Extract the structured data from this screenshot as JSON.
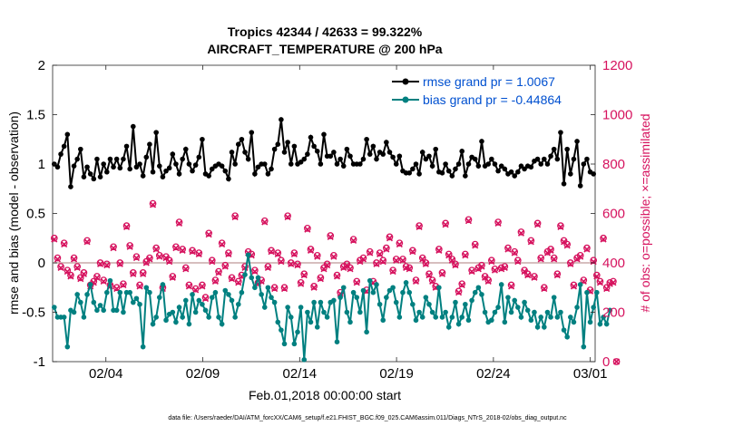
{
  "chart_data": {
    "type": "line",
    "title": "Tropics 42344 / 42633 = 99.322%",
    "subtitle": "AIRCRAFT_TEMPERATURE @ 200 hPa",
    "xlabel": "Feb.01,2018 00:00:00 start",
    "ylabel_left": "rmse and bias (model - observation)",
    "ylabel_right": "# of obs: o=possible; ×=assimilated",
    "footer": "data file: /Users/raeder/DAI/ATM_forcXX/CAM6_setup/f.e21.FHIST_BGC.f09_025.CAM6assim.011/Diags_NTrS_2018-02/obs_diag_output.nc",
    "xlim": [
      1,
      29
    ],
    "ylim_left": [
      -1,
      2
    ],
    "ylim_right": [
      0,
      1200
    ],
    "x_ticks": [
      {
        "value": 3.75,
        "label": "02/04"
      },
      {
        "value": 8.75,
        "label": "02/09"
      },
      {
        "value": 13.75,
        "label": "02/14"
      },
      {
        "value": 18.75,
        "label": "02/19"
      },
      {
        "value": 23.75,
        "label": "02/24"
      },
      {
        "value": 28.75,
        "label": "03/01"
      }
    ],
    "y_ticks_left": [
      -1,
      -0.5,
      0,
      0.5,
      1,
      1.5,
      2
    ],
    "y_ticks_right": [
      0,
      200,
      400,
      600,
      800,
      1000,
      1200
    ],
    "legend": [
      {
        "label": "rmse grand pr = 1.0067",
        "color": "#000000"
      },
      {
        "label": "bias grand pr = -0.44864",
        "color": "#008080"
      }
    ],
    "zero_line": 0,
    "colors": {
      "rmse": "#000000",
      "bias": "#008080",
      "obs": "#d6125e",
      "zero": "#c0a0a0",
      "legend_text": "#0050d0"
    },
    "series": [
      {
        "name": "rmse",
        "axis": "left",
        "values": [
          1.0,
          0.97,
          1.1,
          1.18,
          1.3,
          0.77,
          0.98,
          1.05,
          1.15,
          0.87,
          0.97,
          0.9,
          0.85,
          1.05,
          0.87,
          1.0,
          0.92,
          1.05,
          0.97,
          1.05,
          0.96,
          1.05,
          1.18,
          0.95,
          1.38,
          0.97,
          1.0,
          0.88,
          1.07,
          1.2,
          0.92,
          1.32,
          0.98,
          0.87,
          0.93,
          0.96,
          1.1,
          1.0,
          0.9,
          1.05,
          1.15,
          1.0,
          0.93,
          0.99,
          1.07,
          1.25,
          0.9,
          0.88,
          0.95,
          0.98,
          1.0,
          0.98,
          0.93,
          0.85,
          1.12,
          1.0,
          1.2,
          1.25,
          1.12,
          1.05,
          1.32,
          0.9,
          0.97,
          1.0,
          1.0,
          0.9,
          0.95,
          1.15,
          1.2,
          1.45,
          1.12,
          1.22,
          1.0,
          1.18,
          1.0,
          1.02,
          1.05,
          1.1,
          1.27,
          1.18,
          1.13,
          1.0,
          1.3,
          1.08,
          1.08,
          1.12,
          1.0,
          1.05,
          0.98,
          1.15,
          1.08,
          1.0,
          1.0,
          1.0,
          1.05,
          1.25,
          1.1,
          1.18,
          1.05,
          1.12,
          1.1,
          1.22,
          1.12,
          1.07,
          1.0,
          1.08,
          0.93,
          0.91,
          0.91,
          0.95,
          1.0,
          0.9,
          1.12,
          1.05,
          1.08,
          0.98,
          1.15,
          0.92,
          0.91,
          1.0,
          0.93,
          0.88,
          0.95,
          1.0,
          1.13,
          0.88,
          1.0,
          1.07,
          1.05,
          0.98,
          1.23,
          0.98,
          1.0,
          1.05,
          1.0,
          0.93,
          0.98,
          0.95,
          0.9,
          0.92,
          0.88,
          0.92,
          0.98,
          0.95,
          0.98,
          0.97,
          1.03,
          1.05,
          1.0,
          1.05,
          1.0,
          1.08,
          1.15,
          1.05,
          1.32,
          0.8,
          1.15,
          0.9,
          1.05,
          1.23,
          0.78,
          1.0,
          1.05,
          0.92,
          0.9
        ]
      },
      {
        "name": "bias",
        "axis": "left",
        "values": [
          -0.45,
          -0.55,
          -0.55,
          -0.55,
          -0.85,
          -0.48,
          -0.5,
          -0.32,
          -0.4,
          -0.55,
          -0.32,
          -0.22,
          -0.4,
          -0.48,
          -0.43,
          -0.48,
          -0.3,
          -0.18,
          -0.48,
          -0.48,
          -0.3,
          -0.5,
          -0.3,
          -0.3,
          -0.4,
          -0.36,
          -0.42,
          -0.85,
          -0.25,
          -0.3,
          -0.62,
          -0.55,
          -0.35,
          -0.22,
          -0.58,
          -0.52,
          -0.5,
          -0.6,
          -0.45,
          -0.55,
          -0.38,
          -0.62,
          -0.32,
          -0.5,
          -0.38,
          -0.42,
          -0.48,
          -0.55,
          -0.35,
          -0.3,
          -0.55,
          -0.62,
          -0.28,
          -0.32,
          -0.38,
          -0.55,
          -0.42,
          -0.3,
          -0.12,
          0.08,
          -0.15,
          -0.25,
          -0.15,
          -0.32,
          -0.45,
          -0.25,
          -0.35,
          -0.4,
          -0.6,
          -0.68,
          -0.82,
          -0.45,
          -0.55,
          -0.82,
          -0.7,
          -0.45,
          -0.98,
          -0.5,
          -0.6,
          -0.4,
          -0.65,
          -0.4,
          -0.5,
          -0.55,
          -0.4,
          -0.38,
          -0.8,
          -0.35,
          -0.25,
          -0.5,
          -0.6,
          -0.3,
          -0.35,
          -0.5,
          -0.28,
          -0.7,
          -0.18,
          -0.3,
          -0.22,
          -0.42,
          -0.58,
          -0.35,
          -0.28,
          -0.25,
          -0.4,
          -0.55,
          -0.3,
          -0.2,
          -0.3,
          -0.42,
          -0.58,
          -0.5,
          -0.55,
          -0.35,
          -0.42,
          -0.5,
          -0.55,
          -0.25,
          -0.55,
          -0.5,
          -0.65,
          -0.55,
          -0.4,
          -0.62,
          -0.55,
          -0.42,
          -0.58,
          -0.38,
          -0.3,
          -0.25,
          -0.32,
          -0.5,
          -0.6,
          -0.58,
          -0.5,
          -0.45,
          -0.22,
          -0.6,
          -0.35,
          -0.5,
          -0.38,
          -0.45,
          -0.55,
          -0.4,
          -0.48,
          -0.58,
          -0.5,
          -0.65,
          -0.55,
          -0.65,
          -0.5,
          -0.55,
          -0.35,
          -0.55,
          -0.5,
          -0.68,
          -0.75,
          -0.55,
          -0.6,
          -0.45,
          -0.22,
          -0.85,
          -0.3,
          -0.6,
          -0.45,
          -0.3,
          -0.62,
          -0.55,
          -0.62,
          -0.48
        ]
      },
      {
        "name": "obs_possible",
        "axis": "right",
        "values": [
          500,
          420,
          385,
          480,
          370,
          350,
          420,
          385,
          340,
          360,
          490,
          310,
          325,
          345,
          400,
          330,
          395,
          310,
          465,
          300,
          400,
          315,
          550,
          470,
          360,
          425,
          310,
          360,
          405,
          420,
          640,
          460,
          430,
          300,
          425,
          410,
          345,
          465,
          565,
          455,
          380,
          310,
          450,
          295,
          440,
          310,
          260,
          520,
          410,
          330,
          365,
          480,
          390,
          440,
          340,
          590,
          325,
          350,
          385,
          445,
          435,
          370,
          320,
          330,
          570,
          385,
          450,
          300,
          440,
          410,
          300,
          590,
          400,
          440,
          395,
          320,
          355,
          540,
          455,
          305,
          430,
          340,
          380,
          395,
          510,
          430,
          350,
          280,
          385,
          395,
          380,
          495,
          325,
          410,
          420,
          290,
          445,
          325,
          400,
          440,
          410,
          460,
          505,
          370,
          415,
          480,
          415,
          385,
          380,
          450,
          330,
          550,
          420,
          400,
          355,
          330,
          305,
          455,
          360,
          560,
          435,
          415,
          395,
          285,
          315,
          435,
          575,
          370,
          475,
          380,
          390,
          345,
          330,
          410,
          375,
          565,
          380,
          385,
          460,
          310,
          445,
          410,
          525,
          370,
          355,
          490,
          345,
          560,
          420,
          300,
          445,
          455,
          420,
          355,
          550,
          490,
          475,
          400,
          310,
          420,
          430,
          330,
          460,
          290,
          410,
          350,
          325,
          500,
          300,
          320,
          325,
          0
        ]
      },
      {
        "name": "obs_assimilated",
        "axis": "right",
        "values": [
          495,
          415,
          380,
          475,
          365,
          345,
          415,
          380,
          335,
          355,
          485,
          305,
          320,
          340,
          395,
          325,
          390,
          305,
          460,
          295,
          395,
          310,
          545,
          465,
          355,
          420,
          305,
          355,
          400,
          415,
          635,
          455,
          425,
          295,
          420,
          405,
          340,
          460,
          560,
          450,
          375,
          305,
          445,
          290,
          435,
          305,
          255,
          515,
          405,
          325,
          360,
          475,
          385,
          435,
          335,
          585,
          320,
          345,
          380,
          440,
          430,
          365,
          315,
          325,
          565,
          380,
          445,
          295,
          435,
          405,
          295,
          585,
          395,
          435,
          390,
          315,
          350,
          535,
          450,
          300,
          425,
          335,
          375,
          390,
          505,
          425,
          345,
          275,
          380,
          390,
          375,
          490,
          320,
          405,
          415,
          285,
          440,
          320,
          395,
          435,
          405,
          455,
          500,
          365,
          410,
          475,
          410,
          380,
          375,
          445,
          325,
          545,
          415,
          395,
          350,
          325,
          300,
          450,
          355,
          555,
          430,
          410,
          390,
          280,
          310,
          430,
          570,
          365,
          470,
          375,
          385,
          340,
          325,
          405,
          370,
          560,
          375,
          380,
          455,
          305,
          440,
          405,
          520,
          365,
          350,
          485,
          340,
          555,
          415,
          295,
          440,
          450,
          415,
          350,
          545,
          485,
          470,
          395,
          305,
          415,
          425,
          325,
          455,
          285,
          405,
          345,
          320,
          495,
          295,
          315,
          320,
          0
        ]
      }
    ]
  }
}
